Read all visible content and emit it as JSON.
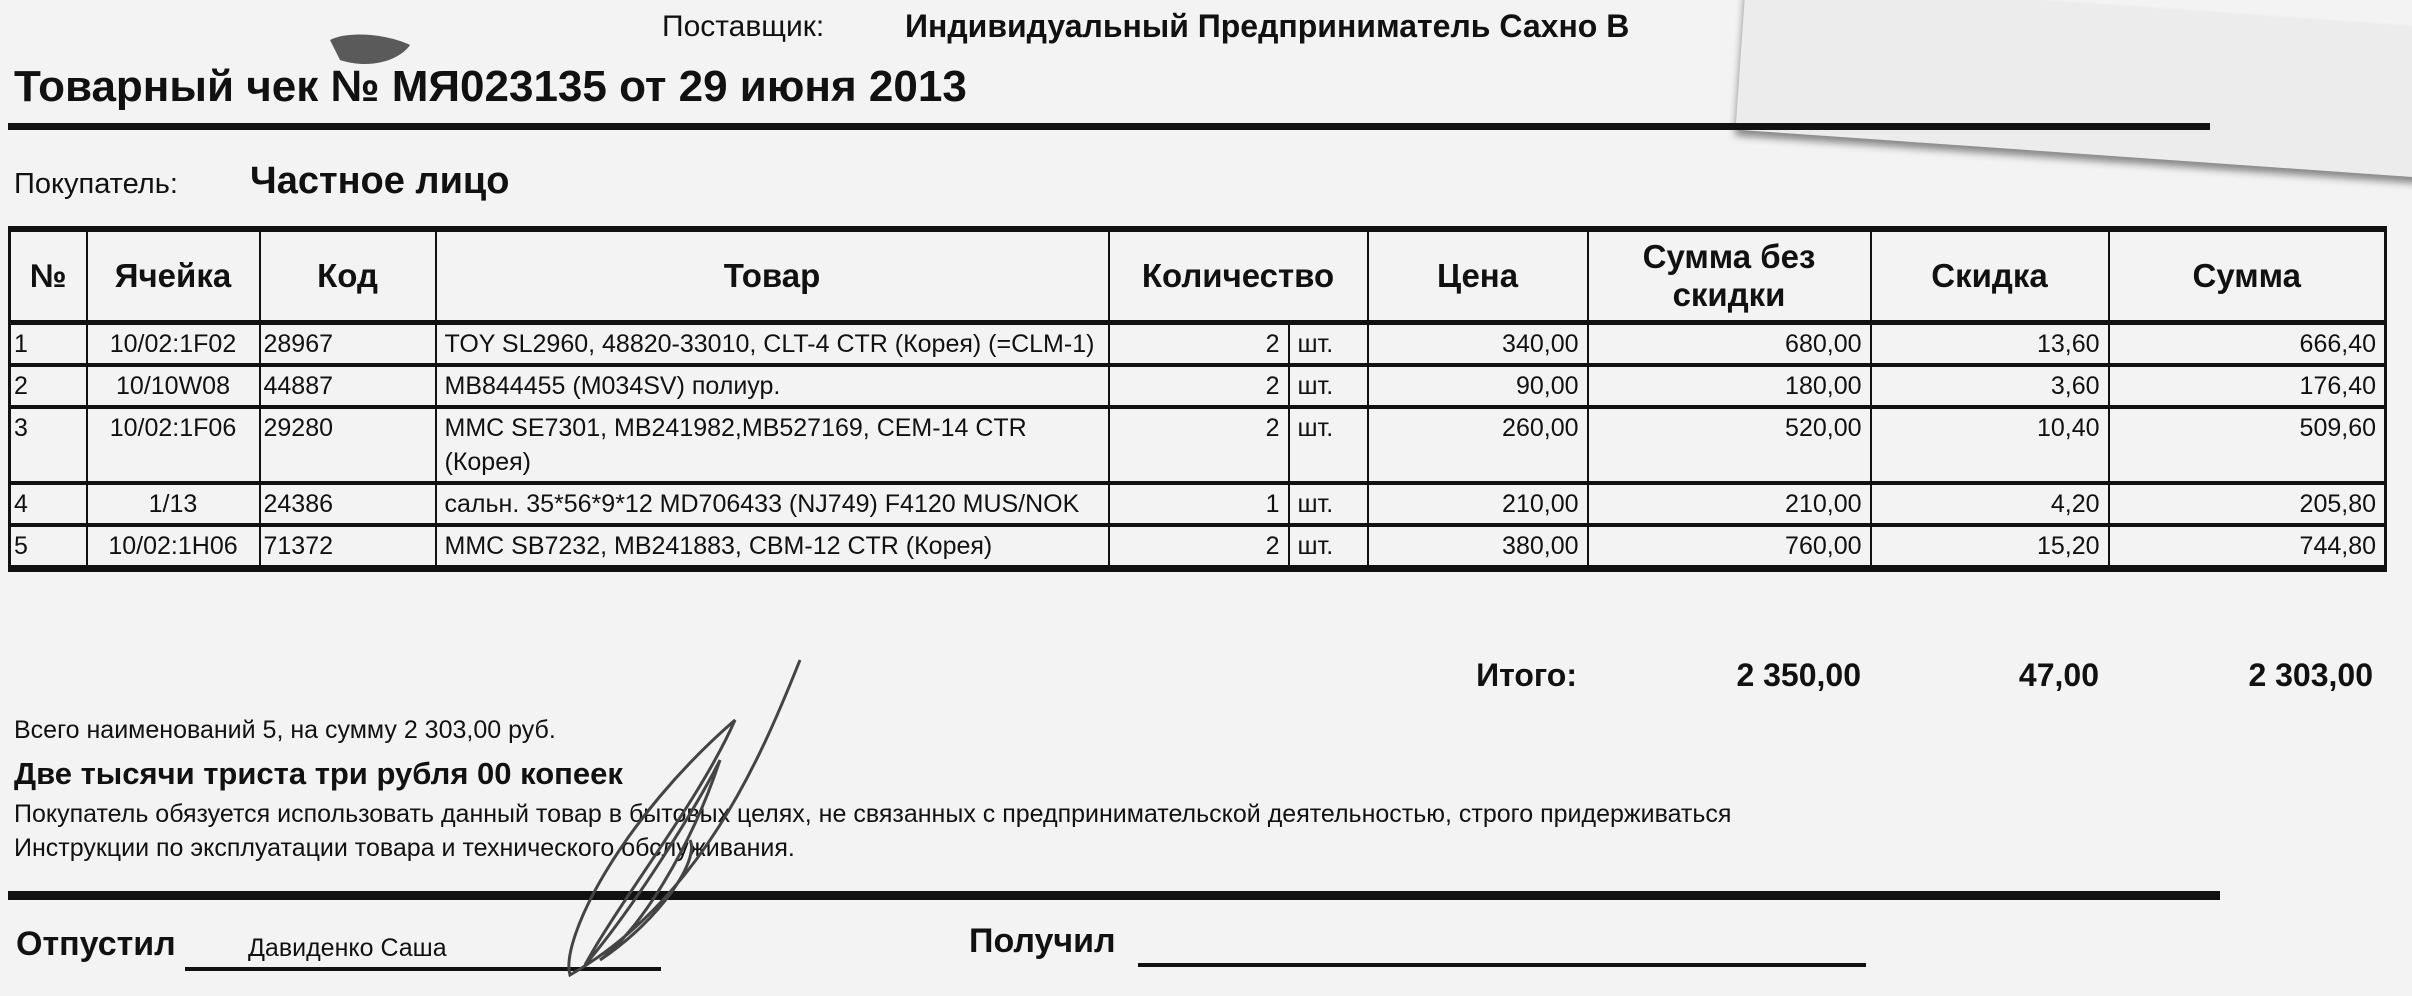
{
  "header": {
    "supplier_label": "Поставщик:",
    "supplier_value": "Индивидуальный Предприниматель Сахно В",
    "title": "Товарный чек № МЯ023135 от 29 июня 2013",
    "buyer_label": "Покупатель:",
    "buyer_value": "Частное лицо"
  },
  "table": {
    "columns": [
      "№",
      "Ячейка",
      "Код",
      "Товар",
      "Количество",
      "Цена",
      "Сумма без скидки",
      "Скидка",
      "Сумма"
    ],
    "rows": [
      {
        "n": "1",
        "cell": "10/02:1F02",
        "code": "28967",
        "item": "TOY SL2960, 48820-33010, CLT-4 CTR (Корея) (=CLM-1)",
        "qty": "2",
        "unit": "шт.",
        "price": "340,00",
        "sum_no_discount": "680,00",
        "discount": "13,60",
        "sum": "666,40"
      },
      {
        "n": "2",
        "cell": "10/10W08",
        "code": "44887",
        "item": "MB844455 (M034SV) полиур.",
        "qty": "2",
        "unit": "шт.",
        "price": "90,00",
        "sum_no_discount": "180,00",
        "discount": "3,60",
        "sum": "176,40"
      },
      {
        "n": "3",
        "cell": "10/02:1F06",
        "code": "29280",
        "item": "MMC SE7301, MB241982,MB527169, CEM-14 CTR (Корея)",
        "qty": "2",
        "unit": "шт.",
        "price": "260,00",
        "sum_no_discount": "520,00",
        "discount": "10,40",
        "sum": "509,60"
      },
      {
        "n": "4",
        "cell": "1/13",
        "code": "24386",
        "item": "сальн. 35*56*9*12 MD706433 (NJ749) F4120 MUS/NOK",
        "qty": "1",
        "unit": "шт.",
        "price": "210,00",
        "sum_no_discount": "210,00",
        "discount": "4,20",
        "sum": "205,80"
      },
      {
        "n": "5",
        "cell": "10/02:1H06",
        "code": "71372",
        "item": "MMC SB7232, MB241883, CBM-12 CTR (Корея)",
        "qty": "2",
        "unit": "шт.",
        "price": "380,00",
        "sum_no_discount": "760,00",
        "discount": "15,20",
        "sum": "744,80"
      }
    ]
  },
  "totals": {
    "label": "Итого:",
    "sum_no_discount": "2 350,00",
    "discount": "47,00",
    "sum": "2 303,00"
  },
  "footer": {
    "summary": "Всего наименований 5, на сумму 2 303,00 руб.",
    "amount_words": "Две тысячи триста три рубля 00 копеек",
    "note_line1": "Покупатель обязуется использовать данный товар в бытовых целях, не связанных с предпринимательской деятельностью, строго придерживаться",
    "note_line2": "Инструкции по эксплуатации товара и технического обслуживания.",
    "released_label": "Отпустил",
    "released_name": "Давиденко Саша",
    "received_label": "Получил"
  },
  "colors": {
    "ink": "#111111",
    "paper": "#f3f3f3",
    "signature": "#444444"
  }
}
